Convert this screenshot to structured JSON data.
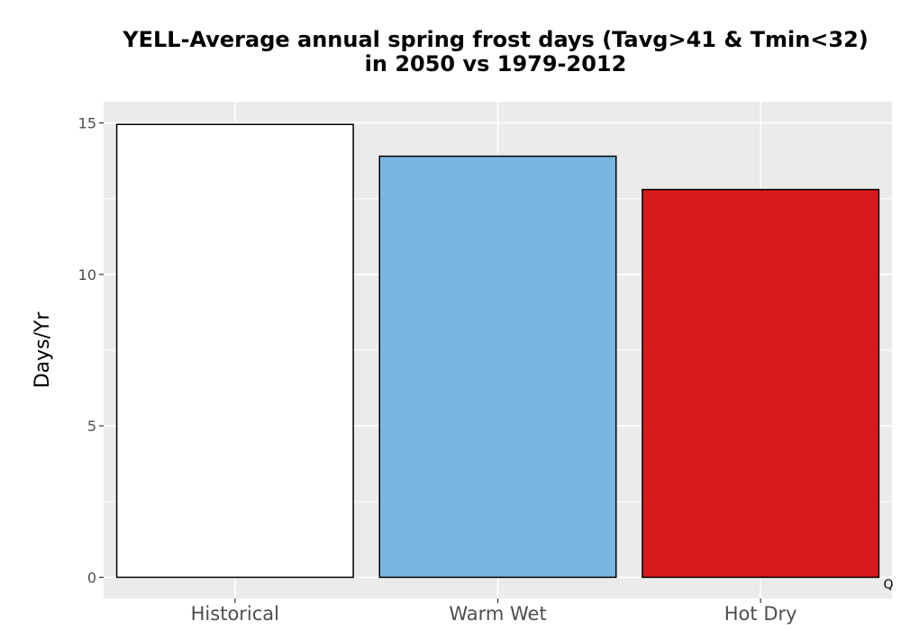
{
  "chart_data": {
    "type": "bar",
    "title_line1": "YELL-Average annual spring frost days (Tavg>41 & Tmin<32)",
    "title_line2": "in 2050 vs 1979-2012",
    "xlabel": "",
    "ylabel": "Days/Yr",
    "categories": [
      "Historical",
      "Warm Wet",
      "Hot Dry"
    ],
    "values": [
      14.95,
      13.9,
      12.8
    ],
    "bar_colors": [
      "#ffffff",
      "#78b7e0",
      "#d71a1c"
    ],
    "bar_outline_color": "#000000",
    "ylim": [
      -0.7,
      15.7
    ],
    "yticks": [
      0,
      5,
      10,
      15
    ],
    "ytick_labels": [
      "0",
      "5",
      "10",
      "15"
    ],
    "grid": true,
    "panel_background": "#ebebeb",
    "grid_color": "#ffffff",
    "corner_note": "Q"
  }
}
